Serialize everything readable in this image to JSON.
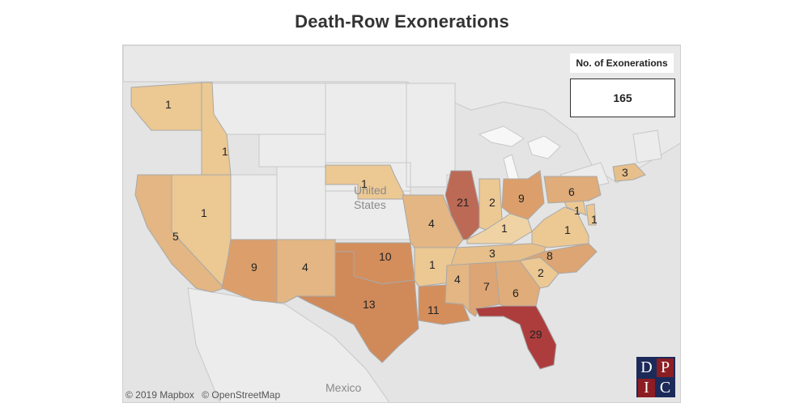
{
  "title": "Death-Row Exonerations",
  "legend": {
    "title": "No. of Exonerations",
    "total": "165"
  },
  "attribution": [
    "© 2019 Mapbox",
    "© OpenStreetMap"
  ],
  "geo_labels": {
    "country_us_line1": "United",
    "country_us_line2": "States",
    "country_mexico": "Mexico"
  },
  "logo": [
    "D",
    "P",
    "I",
    "C"
  ],
  "colors": {
    "low": "#ecc893",
    "mid": "#d8975f",
    "high": "#b85a4e",
    "max": "#ad3d3d",
    "basemap": "#e4e4e4",
    "land_neutral": "#ececec"
  },
  "states": [
    {
      "id": "WA",
      "value": "1"
    },
    {
      "id": "ID",
      "value": "1"
    },
    {
      "id": "NV",
      "value": "1"
    },
    {
      "id": "CA",
      "value": "5"
    },
    {
      "id": "AZ",
      "value": "9"
    },
    {
      "id": "NM",
      "value": "4"
    },
    {
      "id": "NE",
      "value": "1"
    },
    {
      "id": "OK",
      "value": "10"
    },
    {
      "id": "TX",
      "value": "13"
    },
    {
      "id": "MO",
      "value": "4"
    },
    {
      "id": "AR",
      "value": "1"
    },
    {
      "id": "LA",
      "value": "11"
    },
    {
      "id": "IL",
      "value": "21"
    },
    {
      "id": "IN",
      "value": "2"
    },
    {
      "id": "OH",
      "value": "9"
    },
    {
      "id": "KY",
      "value": "1"
    },
    {
      "id": "TN",
      "value": "3"
    },
    {
      "id": "MS",
      "value": "4"
    },
    {
      "id": "AL",
      "value": "7"
    },
    {
      "id": "GA",
      "value": "6"
    },
    {
      "id": "FL",
      "value": "29"
    },
    {
      "id": "SC",
      "value": "2"
    },
    {
      "id": "NC",
      "value": "8"
    },
    {
      "id": "VA",
      "value": "1"
    },
    {
      "id": "MD",
      "value": "1"
    },
    {
      "id": "DE",
      "value": "1"
    },
    {
      "id": "PA",
      "value": "6"
    },
    {
      "id": "MA",
      "value": "3"
    }
  ]
}
